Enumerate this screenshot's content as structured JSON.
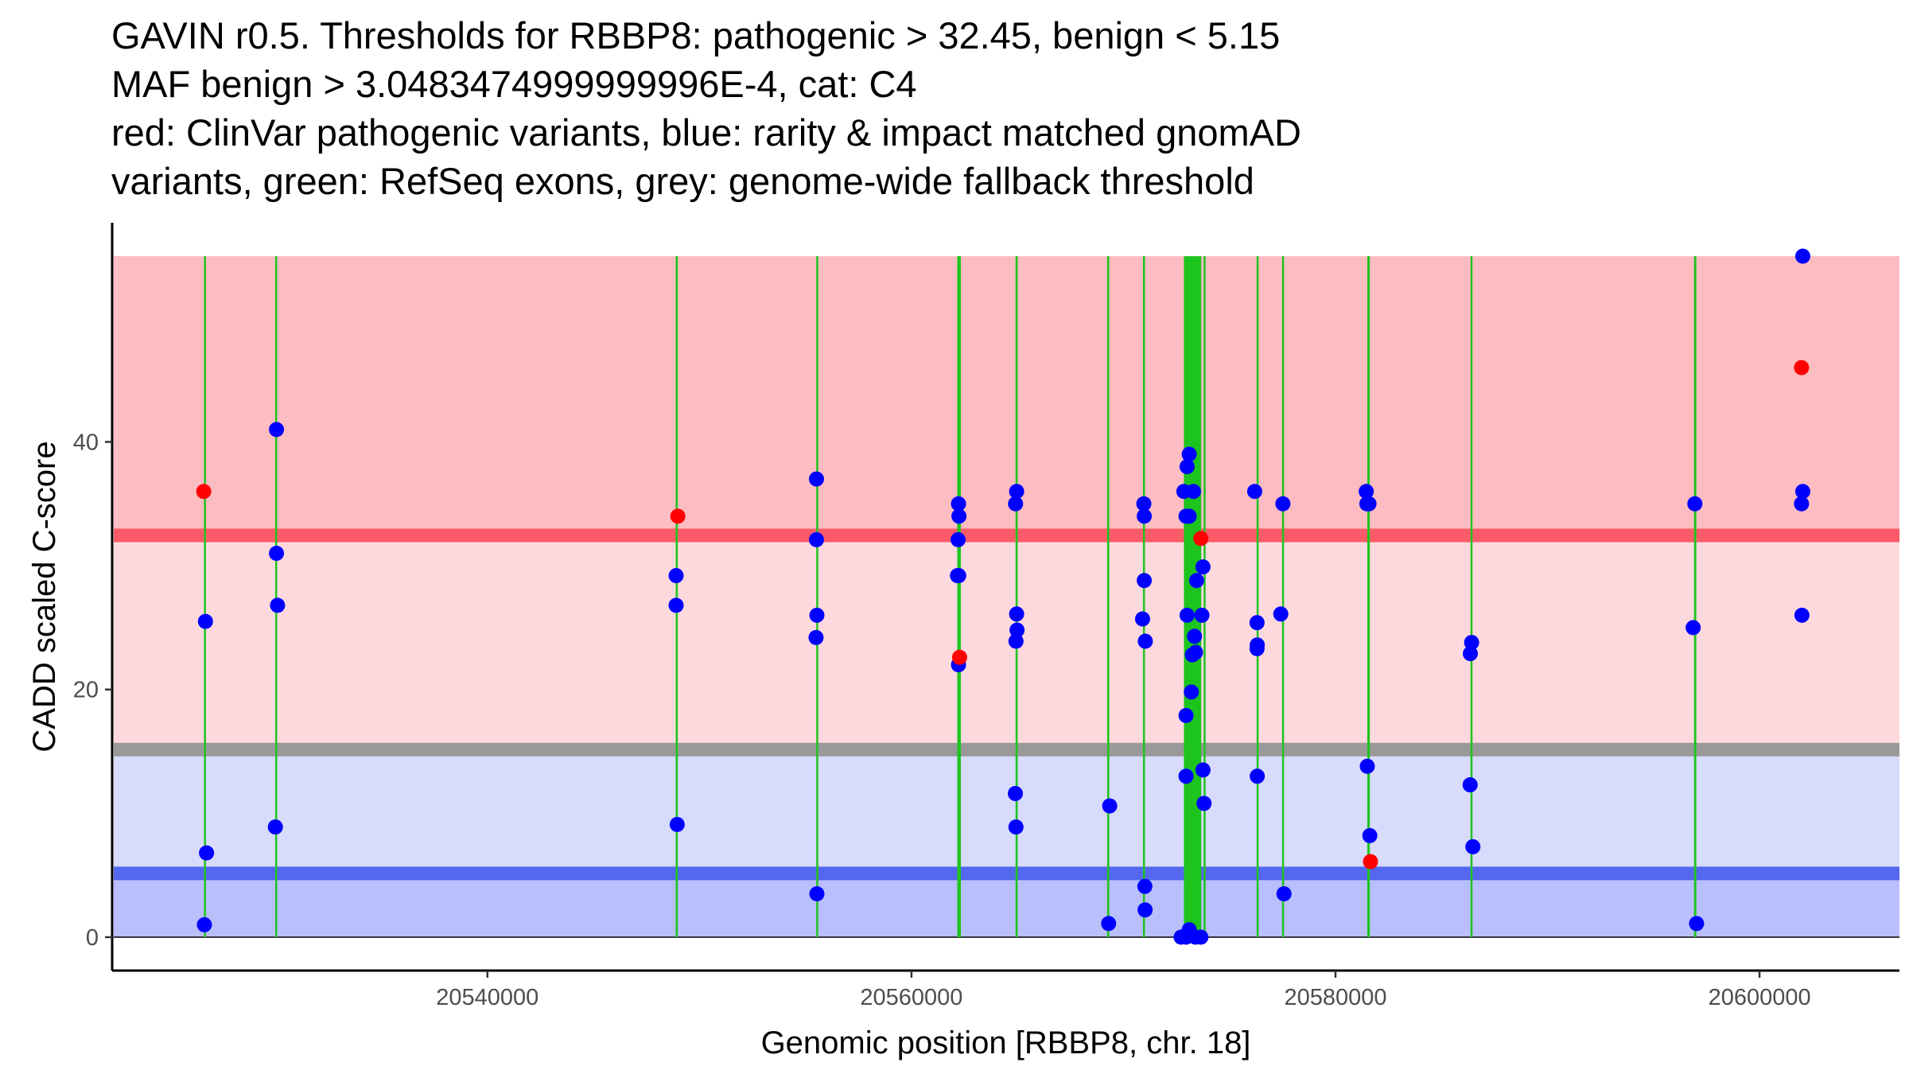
{
  "title_lines": [
    "GAVIN r0.5. Thresholds for RBBP8: pathogenic > 32.45, benign < 5.15",
    "MAF benign > 3.0483474999999996E-4, cat: C4",
    "red: ClinVar pathogenic variants, blue: rarity & impact matched gnomAD",
    "variants, green: RefSeq exons, grey: genome-wide fallback threshold"
  ],
  "chart_data": {
    "type": "scatter",
    "title": "GAVIN r0.5. Thresholds for RBBP8: pathogenic > 32.45, benign < 5.15",
    "xlabel": "Genomic position [RBBP8, chr. 18]",
    "ylabel": "CADD scaled C-score",
    "xlim": [
      20522300,
      20606600
    ],
    "ylim": [
      -2.7,
      57.7
    ],
    "x_ticks": [
      20540000,
      20560000,
      20580000,
      20600000
    ],
    "x_tick_labels": [
      "20540000",
      "20560000",
      "20580000",
      "20600000"
    ],
    "y_ticks": [
      0,
      20,
      40
    ],
    "y_tick_labels": [
      "0",
      "20",
      "40"
    ],
    "grid": false,
    "colors": {
      "pathogenic_band": "#fdbcc1",
      "mid_band": "#fdd9dd",
      "upper_blue_band": "#d7dbfc",
      "benign_band": "#b9bffc",
      "pathogenic_line": "#fb5b68",
      "fallback_line": "#999999",
      "benign_line": "#5467ee",
      "exon": "#1ec41e",
      "gnomad_point": "#0000ff",
      "clinvar_point": "#ff0000"
    },
    "thresholds": {
      "pathogenic": 32.45,
      "benign": 5.15,
      "fallback": 15.15,
      "band_top": 55,
      "band_bottom": 0
    },
    "exons": [
      {
        "start": 20526630,
        "end": 20526690
      },
      {
        "start": 20529990,
        "end": 20530080
      },
      {
        "start": 20548880,
        "end": 20548980
      },
      {
        "start": 20555510,
        "end": 20555570
      },
      {
        "start": 20562160,
        "end": 20562330
      },
      {
        "start": 20564910,
        "end": 20565010
      },
      {
        "start": 20569230,
        "end": 20569330
      },
      {
        "start": 20570920,
        "end": 20571010
      },
      {
        "start": 20572850,
        "end": 20573670
      },
      {
        "start": 20573780,
        "end": 20573840
      },
      {
        "start": 20576280,
        "end": 20576360
      },
      {
        "start": 20577480,
        "end": 20577570
      },
      {
        "start": 20581500,
        "end": 20581620
      },
      {
        "start": 20586370,
        "end": 20586440
      },
      {
        "start": 20596910,
        "end": 20597020
      }
    ],
    "series": [
      {
        "name": "gnomAD (rarity & impact matched)",
        "color": "#0000ff",
        "points": [
          [
            20526700,
            25.5
          ],
          [
            20526750,
            6.8
          ],
          [
            20526650,
            1.0
          ],
          [
            20530050,
            41.0
          ],
          [
            20530050,
            31.0
          ],
          [
            20530100,
            26.8
          ],
          [
            20530000,
            8.9
          ],
          [
            20548900,
            29.2
          ],
          [
            20548900,
            26.8
          ],
          [
            20548950,
            9.1
          ],
          [
            20555520,
            37.0
          ],
          [
            20555520,
            32.1
          ],
          [
            20555540,
            26.0
          ],
          [
            20555500,
            24.2
          ],
          [
            20555540,
            3.5
          ],
          [
            20562220,
            35.0
          ],
          [
            20562240,
            34.0
          ],
          [
            20562200,
            32.1
          ],
          [
            20562230,
            29.2
          ],
          [
            20562170,
            29.2
          ],
          [
            20562220,
            22.0
          ],
          [
            20564960,
            36.0
          ],
          [
            20564910,
            35.0
          ],
          [
            20564960,
            26.1
          ],
          [
            20564980,
            24.8
          ],
          [
            20564930,
            23.9
          ],
          [
            20564900,
            11.6
          ],
          [
            20564930,
            8.9
          ],
          [
            20569350,
            10.6
          ],
          [
            20569300,
            1.1
          ],
          [
            20570960,
            35.0
          ],
          [
            20570980,
            34.0
          ],
          [
            20570980,
            28.8
          ],
          [
            20570900,
            25.7
          ],
          [
            20571030,
            23.9
          ],
          [
            20571010,
            4.1
          ],
          [
            20571020,
            2.2
          ],
          [
            20572850,
            36.0
          ],
          [
            20573100,
            39.0
          ],
          [
            20573000,
            38.0
          ],
          [
            20573300,
            36.0
          ],
          [
            20572950,
            34.0
          ],
          [
            20573100,
            34.0
          ],
          [
            20573750,
            29.9
          ],
          [
            20573450,
            28.8
          ],
          [
            20573000,
            26.0
          ],
          [
            20573700,
            26.0
          ],
          [
            20573350,
            24.3
          ],
          [
            20573400,
            23.0
          ],
          [
            20573250,
            22.8
          ],
          [
            20573200,
            19.8
          ],
          [
            20572950,
            17.9
          ],
          [
            20573750,
            13.5
          ],
          [
            20572950,
            13.0
          ],
          [
            20573800,
            10.8
          ],
          [
            20572720,
            0.0
          ],
          [
            20572950,
            0.0
          ],
          [
            20573100,
            0.6
          ],
          [
            20573400,
            0.0
          ],
          [
            20573650,
            0.0
          ],
          [
            20576190,
            36.0
          ],
          [
            20576300,
            25.4
          ],
          [
            20576310,
            23.6
          ],
          [
            20576300,
            23.3
          ],
          [
            20576310,
            13.0
          ],
          [
            20577520,
            35.0
          ],
          [
            20577420,
            26.1
          ],
          [
            20577570,
            3.5
          ],
          [
            20581450,
            36.0
          ],
          [
            20581480,
            35.0
          ],
          [
            20581580,
            35.0
          ],
          [
            20581500,
            13.8
          ],
          [
            20581620,
            8.2
          ],
          [
            20586420,
            23.8
          ],
          [
            20586360,
            22.9
          ],
          [
            20586350,
            12.3
          ],
          [
            20586480,
            7.3
          ],
          [
            20596950,
            35.0
          ],
          [
            20596870,
            25.0
          ],
          [
            20597030,
            1.1
          ],
          [
            20602040,
            55.0
          ],
          [
            20602040,
            36.0
          ],
          [
            20601980,
            35.0
          ],
          [
            20602000,
            26.0
          ]
        ]
      },
      {
        "name": "ClinVar pathogenic",
        "color": "#ff0000",
        "points": [
          [
            20526620,
            36.0
          ],
          [
            20548980,
            34.0
          ],
          [
            20562270,
            22.6
          ],
          [
            20573650,
            32.2
          ],
          [
            20581650,
            6.1
          ],
          [
            20601980,
            46.0
          ]
        ]
      }
    ]
  }
}
